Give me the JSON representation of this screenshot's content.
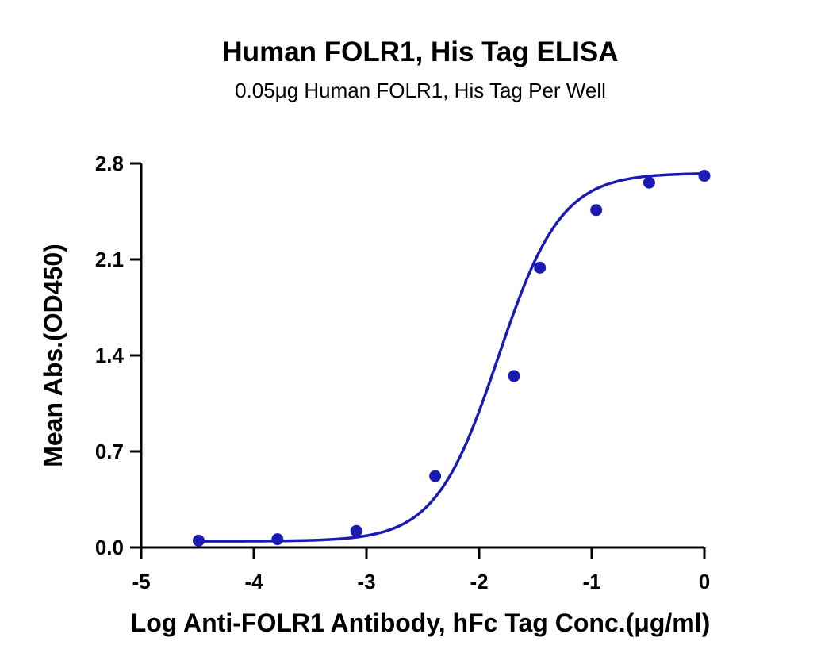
{
  "colors": {
    "series": "#1b1bb3",
    "axis": "#000000",
    "background": "#ffffff"
  },
  "chart_data": {
    "type": "scatter",
    "title": "Human FOLR1, His Tag ELISA",
    "subtitle": "0.05μg Human FOLR1, His Tag Per Well",
    "xlabel": "Log Anti-FOLR1 Antibody, hFc Tag Conc.(μg/ml)",
    "ylabel": "Mean Abs.(OD450)",
    "xlim": [
      -5,
      0
    ],
    "ylim": [
      0,
      2.8
    ],
    "x_ticks": [
      "-5",
      "-4",
      "-3",
      "-2",
      "-1",
      "0"
    ],
    "y_ticks": [
      "0.0",
      "0.7",
      "1.4",
      "2.1",
      "2.8"
    ],
    "grid": false,
    "legend": "none",
    "fit": "four-parameter logistic curve",
    "series": [
      {
        "x": [
          -4.49,
          -3.79,
          -3.09,
          -2.39,
          -1.69,
          -1.46,
          -0.96,
          -0.49,
          0.0
        ],
        "y": [
          0.05,
          0.06,
          0.12,
          0.52,
          1.25,
          2.04,
          2.46,
          2.66,
          2.71
        ]
      }
    ]
  }
}
